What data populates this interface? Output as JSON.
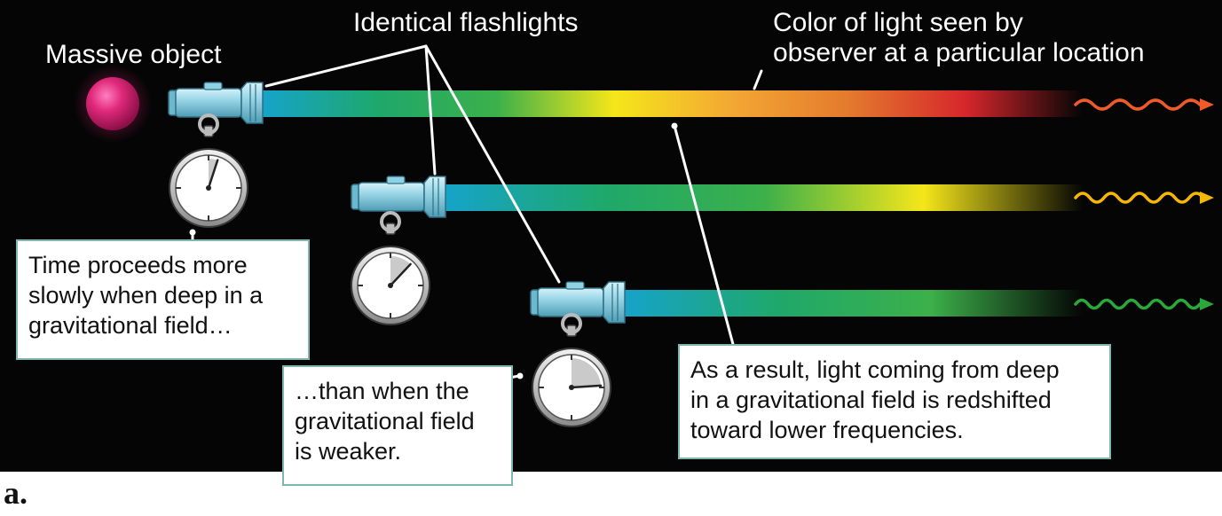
{
  "labels": {
    "massive_object": "Massive object",
    "identical_flashlights": "Identical flashlights",
    "color_seen": "Color of light seen by\nobserver at a particular location"
  },
  "callouts": {
    "time_slow": "Time proceeds more\nslowly when deep in a\ngravitational field…",
    "field_weaker": "…than when the\ngravitational field\nis weaker.",
    "redshift": "As a result, light coming from deep\nin a gravitational field is redshifted\ntoward lower frequencies."
  },
  "panel_letter": "a.",
  "colors": {
    "background": "#050505",
    "massive_object": "#d0246f",
    "flashlight": "#8fd2e4",
    "callout_border": "#7fb6ad",
    "wave_top": "#f05a28",
    "wave_middle": "#f5b800",
    "wave_bottom": "#2aa83a"
  },
  "beams": [
    {
      "name": "top",
      "stops": [
        "#16a3c9",
        "#1fa86b",
        "#3cb04a",
        "#f5e61a",
        "#f3a833",
        "#e47a2e",
        "#d6262b",
        "#050505"
      ]
    },
    {
      "name": "middle",
      "stops": [
        "#16a3c9",
        "#1fa86b",
        "#3cb04a",
        "#f5e61a",
        "#050505"
      ]
    },
    {
      "name": "bottom",
      "stops": [
        "#16a3c9",
        "#1fa86b",
        "#3cb04a",
        "#050505"
      ]
    }
  ],
  "stopwatches": [
    {
      "name": "deep",
      "elapsed_fraction": 0.05
    },
    {
      "name": "middle",
      "elapsed_fraction": 0.12
    },
    {
      "name": "high",
      "elapsed_fraction": 0.24
    }
  ]
}
